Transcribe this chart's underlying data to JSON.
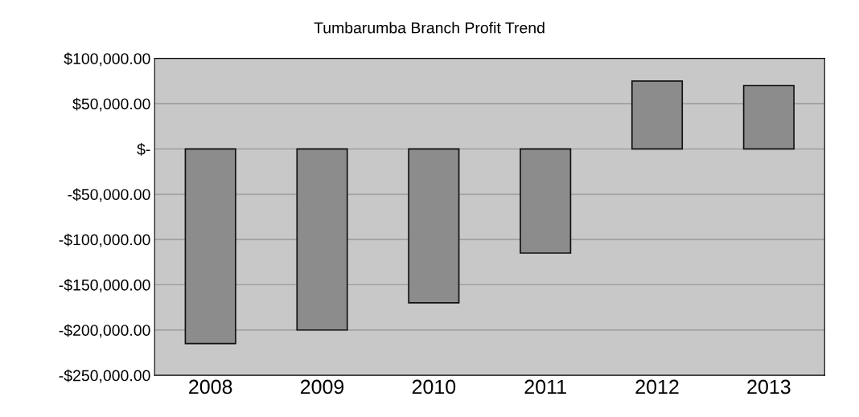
{
  "chart_data": {
    "type": "bar",
    "title": "Tumbarumba Branch Profit Trend",
    "categories": [
      "2008",
      "2009",
      "2010",
      "2011",
      "2012",
      "2013"
    ],
    "values": [
      -215000,
      -200000,
      -170000,
      -115000,
      75000,
      70000
    ],
    "color": "#8c8c8c",
    "ylim": [
      -250000,
      100000
    ],
    "yticks": [
      {
        "value": -250000,
        "label": "-$250,000.00"
      },
      {
        "value": -200000,
        "label": "-$200,000.00"
      },
      {
        "value": -150000,
        "label": "-$150,000.00"
      },
      {
        "value": -100000,
        "label": "-$100,000.00"
      },
      {
        "value": -50000,
        "label": "-$50,000.00"
      },
      {
        "value": 0,
        "label": "$-"
      },
      {
        "value": 50000,
        "label": "$50,000.00"
      },
      {
        "value": 100000,
        "label": "$100,000.00"
      }
    ],
    "grid": "y"
  }
}
